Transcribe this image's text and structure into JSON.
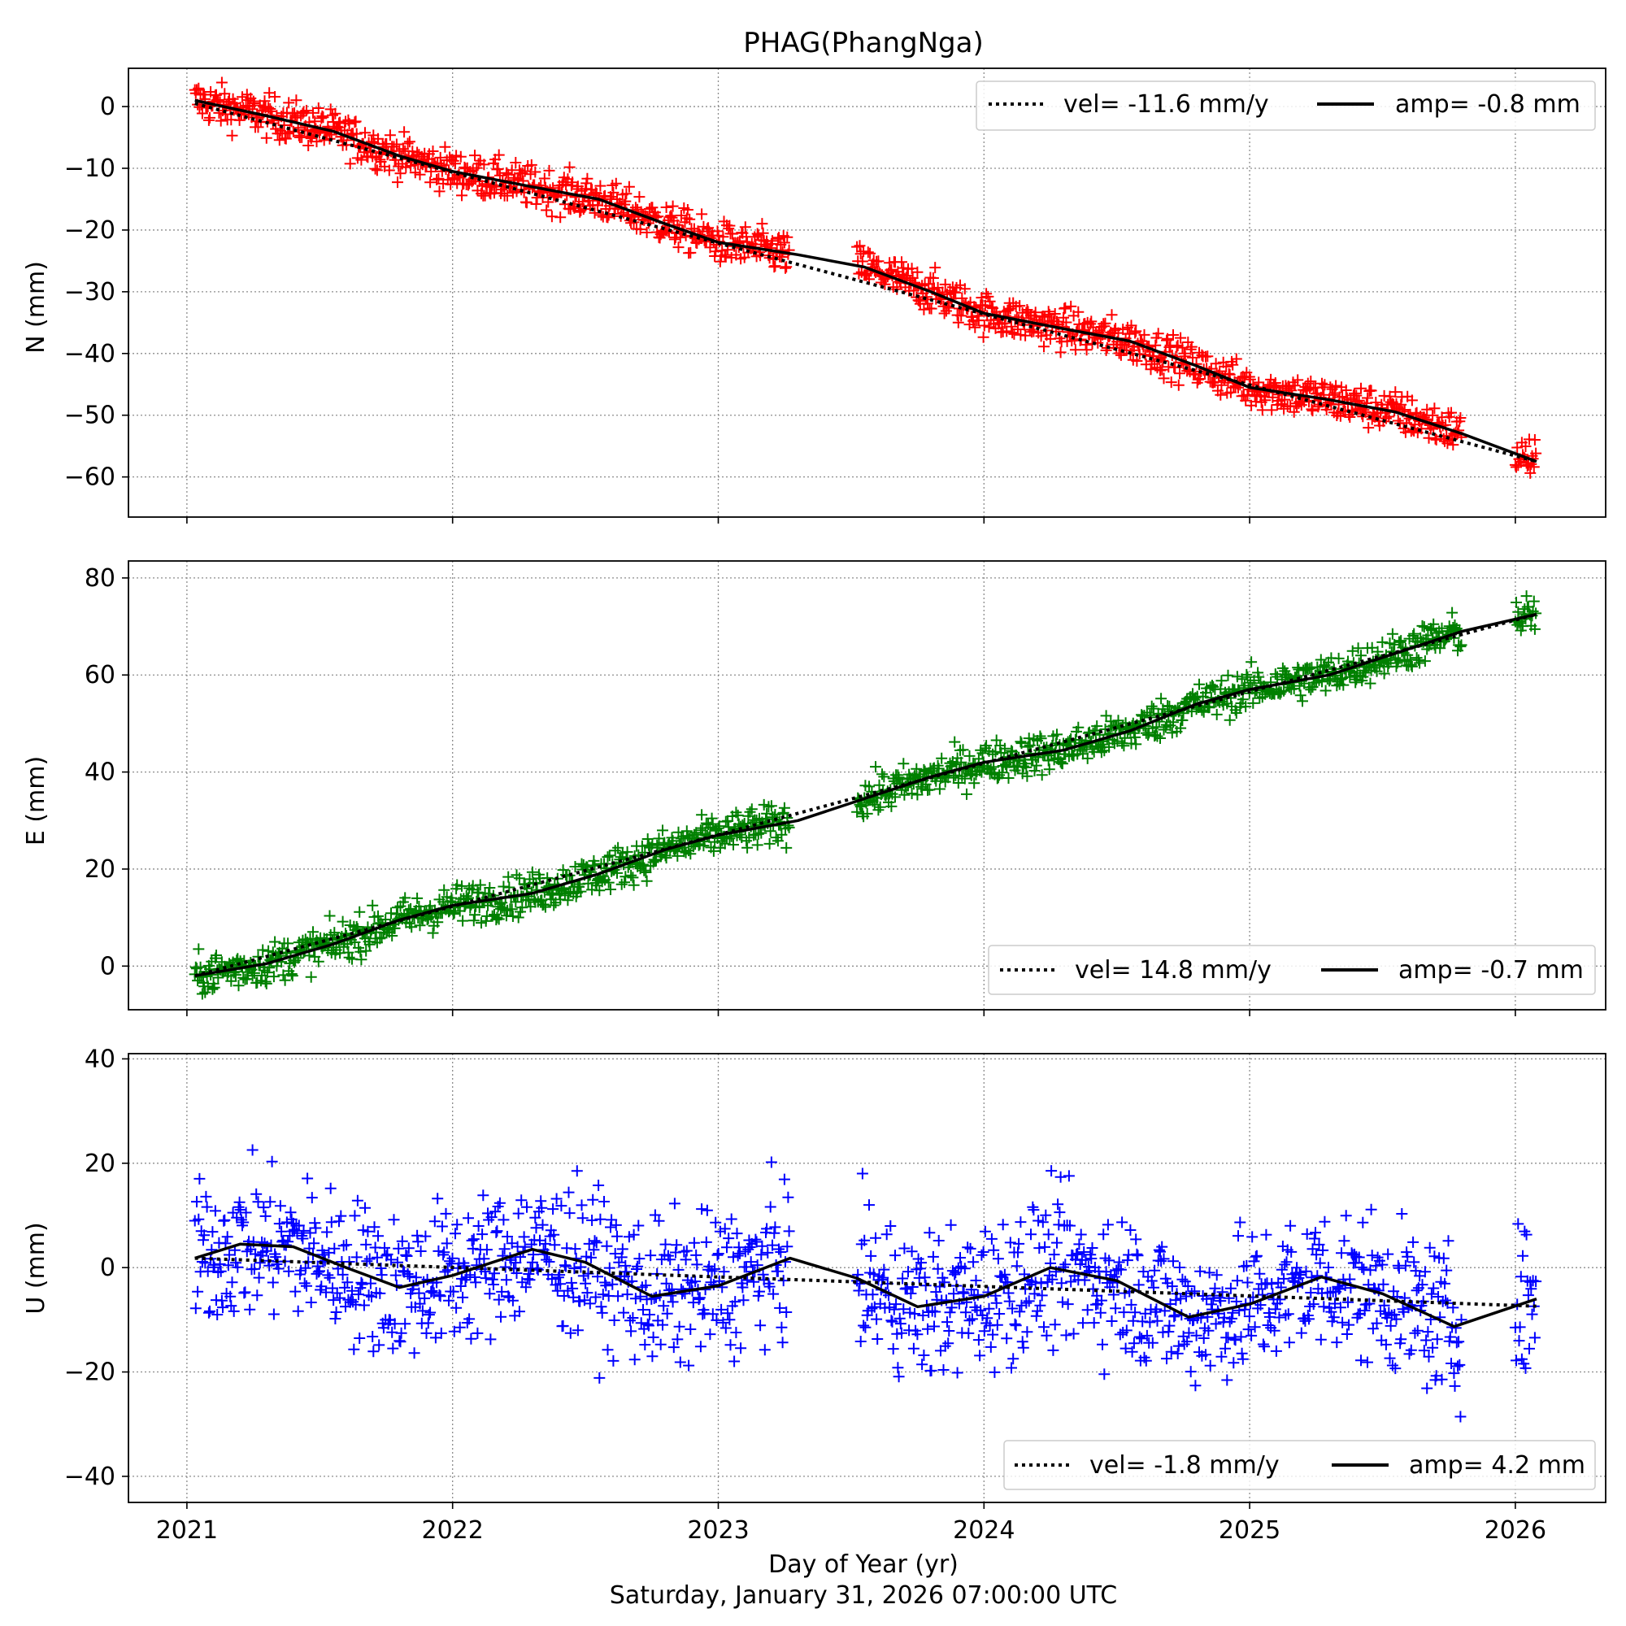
{
  "figure": {
    "title": "PHAG(PhangNga)",
    "xlabel": "Day of Year (yr)",
    "timestamp": "Saturday, January 31, 2026 07:00:00 UTC"
  },
  "chart_data": [
    {
      "type": "scatter",
      "panel": "N",
      "ylabel": "N (mm)",
      "xlim": [
        2020.78,
        2026.34
      ],
      "ylim": [
        -66.5,
        6.2
      ],
      "xticks": [
        2021,
        2022,
        2023,
        2024,
        2025,
        2026
      ],
      "yticks": [
        0,
        -10,
        -20,
        -30,
        -40,
        -50,
        -60
      ],
      "grid": true,
      "legend_placement": "top-right",
      "marker": "+",
      "color": "#ff0000",
      "data_gap": [
        2023.27,
        2023.52
      ],
      "data_range": [
        2021.03,
        2026.08
      ],
      "series": [
        {
          "label": "vel= -11.6 mm/y",
          "style": "dotted",
          "start": [
            2021.03,
            0.5
          ],
          "end": [
            2026.08,
            -57.5
          ]
        },
        {
          "label": "amp= -0.8 mm",
          "style": "solid",
          "points": [
            [
              2021.03,
              1.0
            ],
            [
              2021.3,
              -1.5
            ],
            [
              2021.55,
              -4.0
            ],
            [
              2021.8,
              -8.0
            ],
            [
              2022.0,
              -10.5
            ],
            [
              2022.3,
              -13.0
            ],
            [
              2022.55,
              -15.0
            ],
            [
              2022.8,
              -19.0
            ],
            [
              2023.0,
              -22.0
            ],
            [
              2023.3,
              -24.0
            ],
            [
              2023.55,
              -26.0
            ],
            [
              2023.8,
              -30.0
            ],
            [
              2024.0,
              -33.5
            ],
            [
              2024.3,
              -36.0
            ],
            [
              2024.55,
              -38.0
            ],
            [
              2024.8,
              -42.0
            ],
            [
              2025.0,
              -45.5
            ],
            [
              2025.3,
              -47.5
            ],
            [
              2025.55,
              -49.5
            ],
            [
              2025.8,
              -53.0
            ],
            [
              2026.08,
              -57.5
            ]
          ]
        }
      ]
    },
    {
      "type": "scatter",
      "panel": "E",
      "ylabel": "E (mm)",
      "xlim": [
        2020.78,
        2026.34
      ],
      "ylim": [
        -9.0,
        83.5
      ],
      "xticks": [
        2021,
        2022,
        2023,
        2024,
        2025,
        2026
      ],
      "yticks": [
        0,
        20,
        40,
        60,
        80
      ],
      "grid": true,
      "legend_placement": "bottom-right",
      "marker": "+",
      "color": "#008000",
      "data_gap": [
        2023.27,
        2023.52
      ],
      "data_range": [
        2021.03,
        2026.08
      ],
      "series": [
        {
          "label": "vel= 14.8 mm/y",
          "style": "dotted",
          "start": [
            2021.03,
            -2.0
          ],
          "end": [
            2026.08,
            72.5
          ]
        },
        {
          "label": "amp= -0.7 mm",
          "style": "solid",
          "points": [
            [
              2021.03,
              -2.0
            ],
            [
              2021.3,
              0.5
            ],
            [
              2021.55,
              4.5
            ],
            [
              2021.8,
              9.5
            ],
            [
              2022.0,
              12.5
            ],
            [
              2022.3,
              15.0
            ],
            [
              2022.55,
              19.0
            ],
            [
              2022.8,
              24.0
            ],
            [
              2023.0,
              27.0
            ],
            [
              2023.3,
              30.0
            ],
            [
              2023.55,
              34.5
            ],
            [
              2023.8,
              39.0
            ],
            [
              2024.0,
              42.0
            ],
            [
              2024.3,
              44.5
            ],
            [
              2024.55,
              48.5
            ],
            [
              2024.8,
              54.0
            ],
            [
              2025.0,
              57.0
            ],
            [
              2025.3,
              60.0
            ],
            [
              2025.55,
              64.5
            ],
            [
              2025.8,
              69.0
            ],
            [
              2026.08,
              72.5
            ]
          ]
        }
      ]
    },
    {
      "type": "scatter",
      "panel": "U",
      "ylabel": "U (mm)",
      "xlim": [
        2020.78,
        2026.34
      ],
      "ylim": [
        -45.0,
        41.0
      ],
      "xticks": [
        2021,
        2022,
        2023,
        2024,
        2025,
        2026
      ],
      "yticks": [
        40,
        20,
        0,
        -20,
        -40
      ],
      "grid": true,
      "legend_placement": "bottom-right",
      "marker": "+",
      "color": "#0000ff",
      "data_gap": [
        2023.27,
        2023.52
      ],
      "data_range": [
        2021.03,
        2026.08
      ],
      "series": [
        {
          "label": "vel= -1.8 mm/y",
          "style": "dotted",
          "start": [
            2021.03,
            1.8
          ],
          "end": [
            2026.08,
            -7.4
          ]
        },
        {
          "label": "amp= 4.2 mm",
          "style": "solid",
          "points": [
            [
              2021.03,
              1.8
            ],
            [
              2021.2,
              4.5
            ],
            [
              2021.4,
              4.0
            ],
            [
              2021.6,
              0.0
            ],
            [
              2021.8,
              -3.8
            ],
            [
              2022.0,
              -1.5
            ],
            [
              2022.3,
              3.5
            ],
            [
              2022.5,
              1.0
            ],
            [
              2022.75,
              -5.5
            ],
            [
              2023.0,
              -3.5
            ],
            [
              2023.27,
              1.8
            ],
            [
              2023.52,
              -2.0
            ],
            [
              2023.75,
              -7.5
            ],
            [
              2024.0,
              -5.5
            ],
            [
              2024.25,
              0.0
            ],
            [
              2024.5,
              -2.5
            ],
            [
              2024.77,
              -9.5
            ],
            [
              2025.0,
              -7.0
            ],
            [
              2025.27,
              -1.8
            ],
            [
              2025.5,
              -5.0
            ],
            [
              2025.77,
              -11.3
            ],
            [
              2026.08,
              -6.0
            ]
          ]
        }
      ]
    }
  ]
}
